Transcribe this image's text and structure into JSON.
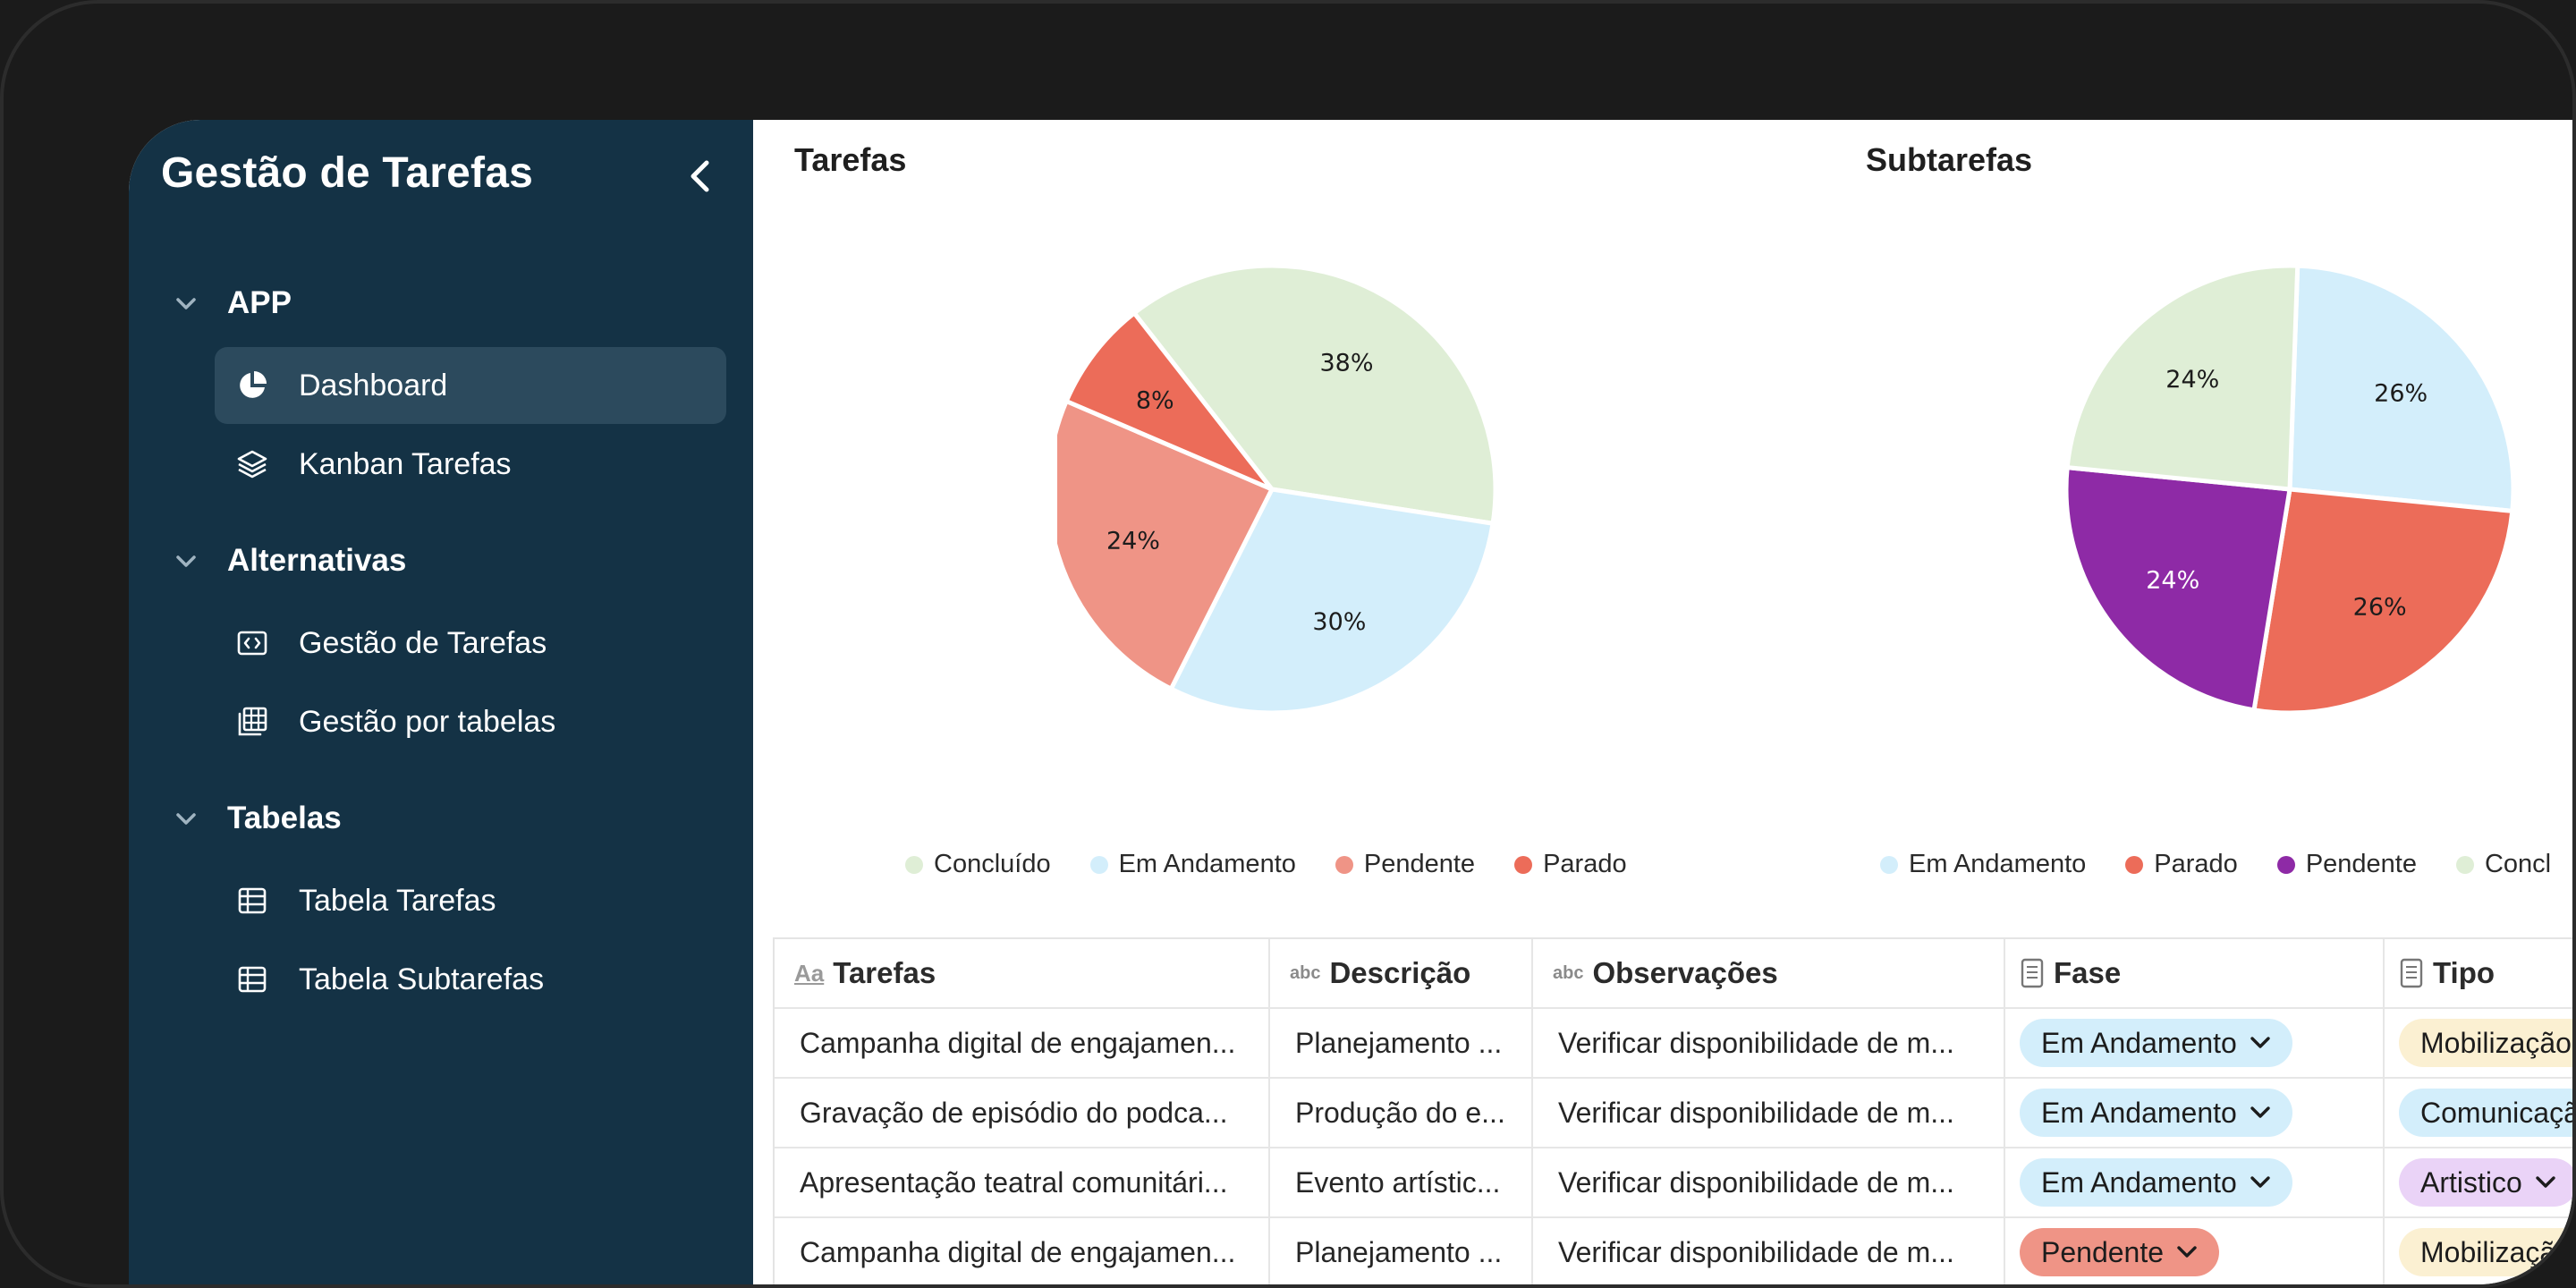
{
  "sidebar": {
    "title": "Gestão de Tarefas",
    "sections": [
      {
        "label": "APP",
        "items": [
          {
            "label": "Dashboard",
            "icon": "pie-chart-icon",
            "active": true
          },
          {
            "label": "Kanban Tarefas",
            "icon": "layers-icon"
          }
        ]
      },
      {
        "label": "Alternativas",
        "items": [
          {
            "label": "Gestão de Tarefas",
            "icon": "code-window-icon"
          },
          {
            "label": "Gestão por tabelas",
            "icon": "table-grid-icon"
          }
        ]
      },
      {
        "label": "Tabelas",
        "items": [
          {
            "label": "Tabela Tarefas",
            "icon": "table-icon"
          },
          {
            "label": "Tabela Subtarefas",
            "icon": "table-icon"
          }
        ]
      }
    ]
  },
  "colors": {
    "sidebar_bg": "#143245",
    "active_item_bg": "#2c4a5d",
    "concluido": "#dfeed6",
    "em_andamento": "#d3eefb",
    "pendente_tarefas": "#ef9486",
    "parado": "#ec6c59",
    "pendente_sub": "#8e2aa6"
  },
  "chart_data": [
    {
      "type": "pie",
      "title": "Tarefas",
      "slices": [
        {
          "label": "Concluído",
          "value": 38,
          "color": "#dfeed6"
        },
        {
          "label": "Em Andamento",
          "value": 30,
          "color": "#d3eefb"
        },
        {
          "label": "Pendente",
          "value": 24,
          "color": "#ef9486"
        },
        {
          "label": "Parado",
          "value": 8,
          "color": "#ec6c59"
        }
      ],
      "data_labels": [
        "38%",
        "30%",
        "24%",
        "8%"
      ],
      "legend_placement": "bottom"
    },
    {
      "type": "pie",
      "title": "Subtarefas",
      "slices": [
        {
          "label": "Em Andamento",
          "value": 26,
          "color": "#d3eefb"
        },
        {
          "label": "Parado",
          "value": 26,
          "color": "#ec6c59"
        },
        {
          "label": "Pendente",
          "value": 24,
          "color": "#8e2aa6"
        },
        {
          "label": "Concl",
          "value": 24,
          "color": "#dfeed6"
        }
      ],
      "data_labels": [
        "26%",
        "26%",
        "24%",
        "24%"
      ],
      "legend_placement": "bottom"
    }
  ],
  "table": {
    "headers": [
      {
        "label": "Tarefas",
        "icon": "Aa"
      },
      {
        "label": "Descrição",
        "icon": "abc"
      },
      {
        "label": "Observações",
        "icon": "abc"
      },
      {
        "label": "Fase",
        "icon": "document-icon"
      },
      {
        "label": "Tipo",
        "icon": "document-icon"
      }
    ],
    "rows": [
      {
        "tarefa": "Campanha digital de engajamen...",
        "descricao": "Planejamento ...",
        "observacoes": "Verificar disponibilidade de m...",
        "fase": "Em Andamento",
        "fase_color": "#d3eefb",
        "tipo": "Mobilização",
        "tipo_color": "#fbf0d2"
      },
      {
        "tarefa": "Gravação de episódio do podca...",
        "descricao": "Produção do e...",
        "observacoes": "Verificar disponibilidade de m...",
        "fase": "Em Andamento",
        "fase_color": "#d3eefb",
        "tipo": "Comunicação",
        "tipo_color": "#d3eefb"
      },
      {
        "tarefa": "Apresentação teatral comunitári...",
        "descricao": "Evento artístic...",
        "observacoes": "Verificar disponibilidade de m...",
        "fase": "Em Andamento",
        "fase_color": "#d3eefb",
        "tipo": "Artistico",
        "tipo_color": "#ead3f7"
      },
      {
        "tarefa": "Campanha digital de engajamen...",
        "descricao": "Planejamento ...",
        "observacoes": "Verificar disponibilidade de m...",
        "fase": "Pendente",
        "fase_color": "#ef9486",
        "tipo": "Mobilização",
        "tipo_color": "#fbf0d2"
      }
    ]
  }
}
